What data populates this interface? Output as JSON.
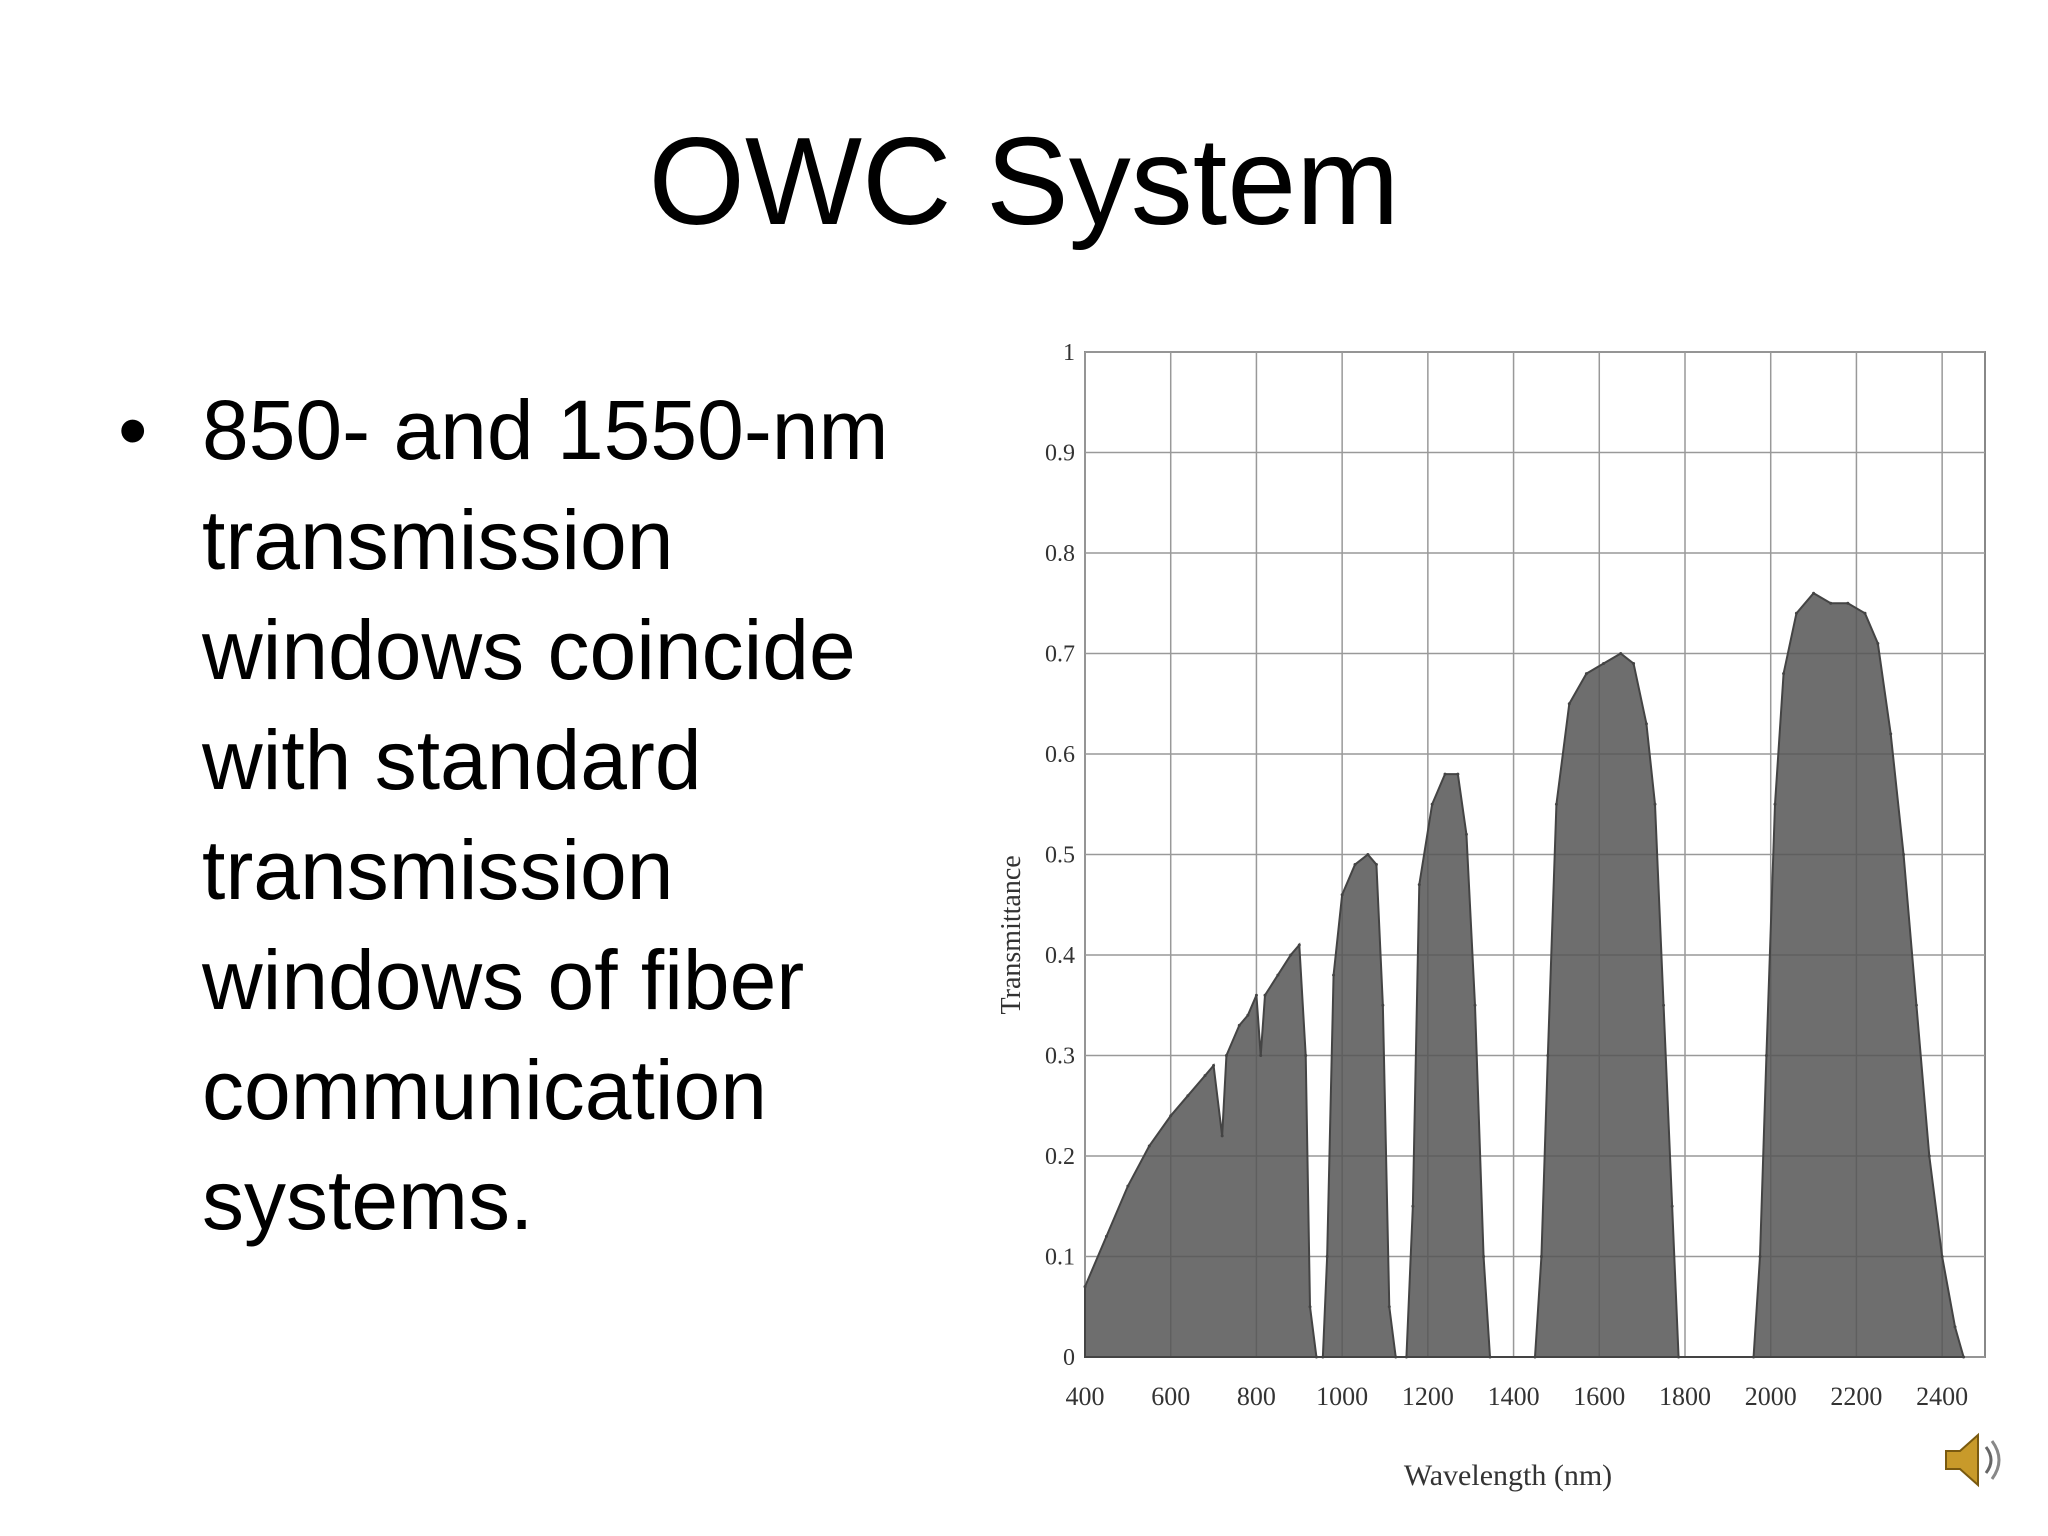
{
  "slide": {
    "title": "OWC System",
    "bullet_lines": [
      "850- and 1550-nm",
      "transmission",
      "windows coincide",
      "with standard",
      "transmission",
      "windows of fiber",
      "communication",
      "systems."
    ]
  },
  "speaker_icon": "speaker-icon",
  "chart_data": {
    "type": "area",
    "title": "",
    "xlabel": "Wavelength (nm)",
    "ylabel": "Transmittance",
    "xlim": [
      400,
      2500
    ],
    "ylim": [
      0,
      1
    ],
    "xticks": [
      400,
      600,
      800,
      1000,
      1200,
      1400,
      1600,
      1800,
      2000,
      2200,
      2400
    ],
    "yticks": [
      "0",
      "0.1",
      "0.2",
      "0.3",
      "0.4",
      "0.5",
      "0.6",
      "0.7",
      "0.8",
      "0.9",
      "1"
    ],
    "grid": true,
    "color": "#555555",
    "series": [
      {
        "points": [
          [
            400,
            0.07
          ],
          [
            450,
            0.12
          ],
          [
            500,
            0.17
          ],
          [
            550,
            0.21
          ],
          [
            600,
            0.24
          ],
          [
            640,
            0.26
          ],
          [
            680,
            0.28
          ],
          [
            700,
            0.29
          ],
          [
            720,
            0.22
          ],
          [
            730,
            0.3
          ],
          [
            760,
            0.33
          ],
          [
            780,
            0.34
          ],
          [
            800,
            0.36
          ],
          [
            810,
            0.3
          ],
          [
            820,
            0.36
          ],
          [
            850,
            0.38
          ],
          [
            880,
            0.4
          ],
          [
            900,
            0.41
          ],
          [
            915,
            0.3
          ],
          [
            925,
            0.05
          ],
          [
            940,
            0.0
          ],
          [
            955,
            0.0
          ],
          [
            965,
            0.1
          ],
          [
            980,
            0.38
          ],
          [
            1000,
            0.46
          ],
          [
            1030,
            0.49
          ],
          [
            1060,
            0.5
          ],
          [
            1080,
            0.49
          ],
          [
            1095,
            0.35
          ],
          [
            1110,
            0.05
          ],
          [
            1125,
            0.0
          ],
          [
            1150,
            0.0
          ],
          [
            1165,
            0.15
          ],
          [
            1180,
            0.47
          ],
          [
            1210,
            0.55
          ],
          [
            1240,
            0.58
          ],
          [
            1270,
            0.58
          ],
          [
            1290,
            0.52
          ],
          [
            1310,
            0.35
          ],
          [
            1330,
            0.1
          ],
          [
            1345,
            0.0
          ],
          [
            1450,
            0.0
          ],
          [
            1465,
            0.1
          ],
          [
            1480,
            0.3
          ],
          [
            1500,
            0.55
          ],
          [
            1530,
            0.65
          ],
          [
            1570,
            0.68
          ],
          [
            1610,
            0.69
          ],
          [
            1650,
            0.7
          ],
          [
            1680,
            0.69
          ],
          [
            1710,
            0.63
          ],
          [
            1730,
            0.55
          ],
          [
            1750,
            0.35
          ],
          [
            1770,
            0.15
          ],
          [
            1785,
            0.0
          ],
          [
            1960,
            0.0
          ],
          [
            1975,
            0.1
          ],
          [
            1990,
            0.3
          ],
          [
            2010,
            0.55
          ],
          [
            2030,
            0.68
          ],
          [
            2060,
            0.74
          ],
          [
            2100,
            0.76
          ],
          [
            2140,
            0.75
          ],
          [
            2180,
            0.75
          ],
          [
            2220,
            0.74
          ],
          [
            2250,
            0.71
          ],
          [
            2280,
            0.62
          ],
          [
            2310,
            0.5
          ],
          [
            2340,
            0.35
          ],
          [
            2370,
            0.2
          ],
          [
            2400,
            0.1
          ],
          [
            2430,
            0.03
          ],
          [
            2450,
            0.0
          ]
        ]
      }
    ]
  }
}
